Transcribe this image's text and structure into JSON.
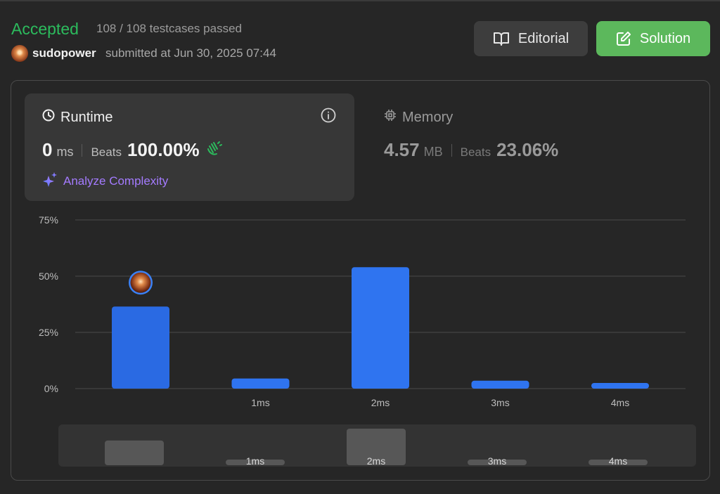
{
  "result": {
    "status": "Accepted",
    "testcases": "108 / 108 testcases passed",
    "user": "sudopower",
    "submitted": "submitted at Jun 30, 2025 07:44"
  },
  "actions": {
    "editorial_label": "Editorial",
    "solution_label": "Solution"
  },
  "runtime": {
    "title": "Runtime",
    "value": "0",
    "unit": "ms",
    "beats_label": "Beats",
    "beats_value": "100.00%",
    "analyze_label": "Analyze Complexity"
  },
  "memory": {
    "title": "Memory",
    "value": "4.57",
    "unit": "MB",
    "beats_label": "Beats",
    "beats_value": "23.06%"
  },
  "colors": {
    "accepted": "#2cbb5d",
    "bar": "#2f74f0",
    "bar_user": "#2a6ae3",
    "solution_btn": "#5cb85c",
    "analyze": "#a47bff"
  },
  "chart_data": {
    "type": "bar",
    "categories": [
      "",
      "1ms",
      "2ms",
      "3ms",
      "4ms"
    ],
    "values": [
      36.5,
      4.5,
      54,
      3.5,
      2.5
    ],
    "user_bar_index": 0,
    "yticks": [
      "0%",
      "25%",
      "50%",
      "75%"
    ],
    "ytick_values": [
      0,
      25,
      50,
      75
    ],
    "ylim": [
      0,
      75
    ],
    "grid": true,
    "xlabel": "",
    "ylabel": ""
  }
}
